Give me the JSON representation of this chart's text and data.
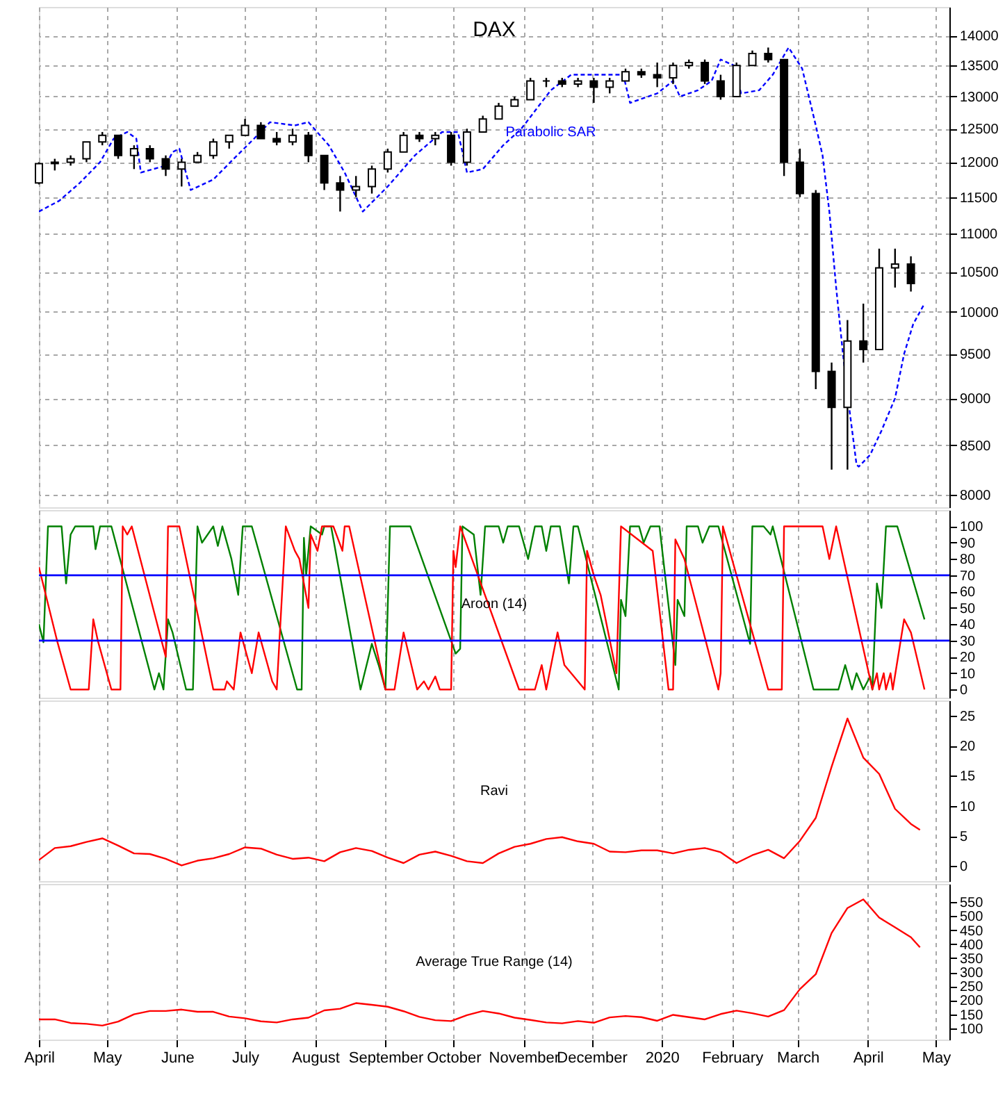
{
  "chart_data": [
    {
      "type": "candlestick",
      "title": "DAX",
      "log": true,
      "grid": true,
      "tick_labels": "y",
      "xlim": [
        "2019-04-01",
        "2020-05-07"
      ],
      "xticks": [
        {
          "value": "2019-04-01",
          "label": null
        },
        {
          "value": "2019-05-01",
          "label": null
        },
        {
          "value": "2019-06-01",
          "label": null
        },
        {
          "value": "2019-07-01",
          "label": null
        },
        {
          "value": "2019-08-01",
          "label": null
        },
        {
          "value": "2019-09-01",
          "label": null
        },
        {
          "value": "2019-10-01",
          "label": null
        },
        {
          "value": "2019-11-01",
          "label": null
        },
        {
          "value": "2019-12-01",
          "label": null
        },
        {
          "value": "2020-01-01",
          "label": null
        },
        {
          "value": "2020-02-01",
          "label": null
        },
        {
          "value": "2020-03-01",
          "label": null
        },
        {
          "value": "2020-04-01",
          "label": null
        },
        {
          "value": "2020-05-01",
          "label": null
        }
      ],
      "ylim": [
        7880,
        14500
      ],
      "yticks": [
        8000,
        8500,
        9000,
        9500,
        10000,
        10500,
        11000,
        11500,
        12000,
        12500,
        13000,
        13500,
        14000
      ],
      "x": [
        "2019-04-01",
        "2019-04-08",
        "2019-04-15",
        "2019-04-22",
        "2019-04-29",
        "2019-05-06",
        "2019-05-13",
        "2019-05-20",
        "2019-05-27",
        "2019-06-03",
        "2019-06-10",
        "2019-06-17",
        "2019-06-24",
        "2019-07-01",
        "2019-07-08",
        "2019-07-15",
        "2019-07-22",
        "2019-07-29",
        "2019-08-05",
        "2019-08-12",
        "2019-08-19",
        "2019-08-26",
        "2019-09-02",
        "2019-09-09",
        "2019-09-16",
        "2019-09-23",
        "2019-09-30",
        "2019-10-07",
        "2019-10-14",
        "2019-10-21",
        "2019-10-28",
        "2019-11-04",
        "2019-11-11",
        "2019-11-18",
        "2019-11-25",
        "2019-12-02",
        "2019-12-09",
        "2019-12-16",
        "2019-12-23",
        "2019-12-30",
        "2020-01-06",
        "2020-01-13",
        "2020-01-20",
        "2020-01-27",
        "2020-02-03",
        "2020-02-10",
        "2020-02-17",
        "2020-02-24",
        "2020-03-02",
        "2020-03-09",
        "2020-03-16",
        "2020-03-23",
        "2020-03-30",
        "2020-04-06",
        "2020-04-13",
        "2020-04-20"
      ],
      "ohlc": [
        [
          11700,
          12000,
          11680,
          11980
        ],
        [
          11980,
          12050,
          11880,
          12000
        ],
        [
          12000,
          12100,
          11950,
          12050
        ],
        [
          12050,
          12300,
          12000,
          12300
        ],
        [
          12300,
          12450,
          12250,
          12400
        ],
        [
          12400,
          12400,
          12050,
          12100
        ],
        [
          12100,
          12250,
          11900,
          12200
        ],
        [
          12200,
          12250,
          12000,
          12050
        ],
        [
          12050,
          12100,
          11800,
          11900
        ],
        [
          11900,
          12050,
          11650,
          12000
        ],
        [
          12000,
          12150,
          12000,
          12100
        ],
        [
          12100,
          12350,
          12050,
          12300
        ],
        [
          12300,
          12400,
          12200,
          12400
        ],
        [
          12400,
          12650,
          12400,
          12550
        ],
        [
          12550,
          12600,
          12350,
          12350
        ],
        [
          12350,
          12450,
          12250,
          12300
        ],
        [
          12300,
          12500,
          12250,
          12400
        ],
        [
          12400,
          12450,
          12000,
          12100
        ],
        [
          12100,
          12100,
          11600,
          11700
        ],
        [
          11700,
          11800,
          11300,
          11600
        ],
        [
          11600,
          11800,
          11500,
          11650
        ],
        [
          11650,
          11950,
          11550,
          11900
        ],
        [
          11900,
          12200,
          11850,
          12150
        ],
        [
          12150,
          12450,
          12150,
          12400
        ],
        [
          12400,
          12450,
          12300,
          12350
        ],
        [
          12350,
          12450,
          12250,
          12400
        ],
        [
          12400,
          12450,
          11950,
          12000
        ],
        [
          12000,
          12500,
          11950,
          12450
        ],
        [
          12450,
          12700,
          12450,
          12650
        ],
        [
          12650,
          12900,
          12650,
          12850
        ],
        [
          12850,
          13000,
          12850,
          12950
        ],
        [
          12950,
          13300,
          12950,
          13250
        ],
        [
          13250,
          13300,
          13150,
          13250
        ],
        [
          13250,
          13300,
          13150,
          13200
        ],
        [
          13200,
          13300,
          13150,
          13250
        ],
        [
          13250,
          13300,
          12900,
          13150
        ],
        [
          13150,
          13300,
          13050,
          13250
        ],
        [
          13250,
          13450,
          13250,
          13400
        ],
        [
          13400,
          13450,
          13300,
          13350
        ],
        [
          13350,
          13550,
          13150,
          13300
        ],
        [
          13300,
          13550,
          13200,
          13500
        ],
        [
          13500,
          13600,
          13450,
          13550
        ],
        [
          13550,
          13600,
          13200,
          13250
        ],
        [
          13250,
          13350,
          12950,
          13000
        ],
        [
          13000,
          13550,
          13000,
          13500
        ],
        [
          13500,
          13750,
          13500,
          13700
        ],
        [
          13700,
          13800,
          13550,
          13600
        ],
        [
          13600,
          13600,
          11800,
          12000
        ],
        [
          12000,
          12200,
          11500,
          11550
        ],
        [
          11550,
          11600,
          9100,
          9300
        ],
        [
          9300,
          9400,
          8250,
          8900
        ],
        [
          8900,
          9900,
          8250,
          9650
        ],
        [
          9650,
          10100,
          9400,
          9550
        ],
        [
          9550,
          10800,
          9550,
          10550
        ],
        [
          10550,
          10800,
          10300,
          10600
        ],
        [
          10600,
          10700,
          10250,
          10350
        ]
      ],
      "series": [
        {
          "name": "Parabolic SAR",
          "type": "line",
          "color": "#0000ff",
          "line_style": "dashed",
          "x": [
            "2019-04-01",
            "2019-04-10",
            "2019-04-19",
            "2019-04-28",
            "2019-05-04",
            "2019-05-10",
            "2019-05-14",
            "2019-05-16",
            "2019-05-27",
            "2019-05-30",
            "2019-06-02",
            "2019-06-07",
            "2019-06-17",
            "2019-06-26",
            "2019-07-05",
            "2019-07-12",
            "2019-07-23",
            "2019-07-29",
            "2019-08-07",
            "2019-08-14",
            "2019-08-22",
            "2019-09-02",
            "2019-09-14",
            "2019-09-26",
            "2019-10-03",
            "2019-10-07",
            "2019-10-14",
            "2019-10-23",
            "2019-10-31",
            "2019-11-13",
            "2019-11-22",
            "2019-12-15",
            "2019-12-18",
            "2019-12-30",
            "2020-01-06",
            "2020-01-09",
            "2020-01-17",
            "2020-01-23",
            "2020-01-27",
            "2020-02-02",
            "2020-02-05",
            "2020-02-13",
            "2020-02-19",
            "2020-02-26",
            "2020-03-03",
            "2020-03-09",
            "2020-03-12",
            "2020-03-15",
            "2020-03-18",
            "2020-03-21",
            "2020-03-24",
            "2020-03-27",
            "2020-03-28",
            "2020-04-02",
            "2020-04-07",
            "2020-04-13",
            "2020-04-17",
            "2020-04-21",
            "2020-04-26"
          ],
          "values": [
            11300,
            11450,
            11700,
            12000,
            12350,
            12450,
            12350,
            11850,
            11950,
            12150,
            12200,
            11600,
            11750,
            12050,
            12350,
            12600,
            12550,
            12600,
            12250,
            11850,
            11300,
            11650,
            12100,
            12450,
            12450,
            11850,
            11900,
            12250,
            12500,
            13100,
            13350,
            13350,
            12900,
            13050,
            13250,
            13000,
            13100,
            13250,
            13600,
            13500,
            13050,
            13100,
            13350,
            13800,
            13450,
            12550,
            12100,
            11300,
            10300,
            9500,
            8850,
            8300,
            8280,
            8400,
            8650,
            9000,
            9500,
            9850,
            10100
          ]
        }
      ]
    },
    {
      "type": "line",
      "grid": "x",
      "tick_labels": "y",
      "annotations": [
        "Aroon (14)"
      ],
      "xlim": [
        "2019-04-01",
        "2020-05-07"
      ],
      "xticks": [
        {
          "value": "2019-04-01",
          "label": null
        },
        {
          "value": "2019-05-01",
          "label": null
        },
        {
          "value": "2019-06-01",
          "label": null
        },
        {
          "value": "2019-07-01",
          "label": null
        },
        {
          "value": "2019-08-01",
          "label": null
        },
        {
          "value": "2019-09-01",
          "label": null
        },
        {
          "value": "2019-10-01",
          "label": null
        },
        {
          "value": "2019-11-01",
          "label": null
        },
        {
          "value": "2019-12-01",
          "label": null
        },
        {
          "value": "2020-01-01",
          "label": null
        },
        {
          "value": "2020-02-01",
          "label": null
        },
        {
          "value": "2020-03-01",
          "label": null
        },
        {
          "value": "2020-04-01",
          "label": null
        },
        {
          "value": "2020-05-01",
          "label": null
        }
      ],
      "ylim": [
        -5,
        110
      ],
      "yticks": [
        0,
        10,
        20,
        30,
        40,
        50,
        60,
        70,
        80,
        90,
        100
      ],
      "ref_lines": [
        {
          "axis": "y",
          "value": 70,
          "color": "#0000ff"
        },
        {
          "axis": "y",
          "value": 30,
          "color": "#0000ff"
        }
      ],
      "series": [
        {
          "color": "#008000",
          "x": [
            "2019-04-01",
            "2019-04-03",
            "2019-04-05",
            "2019-04-11",
            "2019-04-13",
            "2019-04-15",
            "2019-04-17",
            "2019-04-25",
            "2019-04-26",
            "2019-04-28",
            "2019-05-03",
            "2019-05-22",
            "2019-05-24",
            "2019-05-26",
            "2019-05-28",
            "2019-05-30",
            "2019-06-05",
            "2019-06-08",
            "2019-06-10",
            "2019-06-12",
            "2019-06-17",
            "2019-06-19",
            "2019-06-21",
            "2019-06-25",
            "2019-06-28",
            "2019-06-30",
            "2019-07-04",
            "2019-07-24",
            "2019-07-26",
            "2019-07-27",
            "2019-07-28",
            "2019-07-30",
            "2019-08-04",
            "2019-08-05",
            "2019-08-08",
            "2019-08-21",
            "2019-08-26",
            "2019-08-29",
            "2019-09-01",
            "2019-09-03",
            "2019-09-12",
            "2019-10-02",
            "2019-10-04",
            "2019-10-05",
            "2019-10-10",
            "2019-10-13",
            "2019-10-15",
            "2019-10-21",
            "2019-10-23",
            "2019-10-25",
            "2019-10-30",
            "2019-11-03",
            "2019-11-06",
            "2019-11-09",
            "2019-11-11",
            "2019-11-13",
            "2019-11-17",
            "2019-11-21",
            "2019-11-23",
            "2019-11-25",
            "2019-12-13",
            "2019-12-14",
            "2019-12-16",
            "2019-12-18",
            "2019-12-22",
            "2019-12-24",
            "2019-12-27",
            "2019-12-31",
            "2020-01-07",
            "2020-01-08",
            "2020-01-11",
            "2020-01-12",
            "2020-01-17",
            "2020-01-19",
            "2020-01-22",
            "2020-01-26",
            "2020-02-09",
            "2020-02-10",
            "2020-02-15",
            "2020-02-18",
            "2020-02-19",
            "2020-03-08",
            "2020-03-19",
            "2020-03-22",
            "2020-03-25",
            "2020-03-27",
            "2020-03-30",
            "2020-04-02",
            "2020-04-03",
            "2020-04-05",
            "2020-04-07",
            "2020-04-09",
            "2020-04-14",
            "2020-04-26"
          ],
          "values": [
            40,
            29,
            100,
            100,
            65,
            95,
            100,
            100,
            86,
            100,
            100,
            0,
            10,
            0,
            43,
            35,
            0,
            0,
            100,
            90,
            100,
            88,
            100,
            80,
            58,
            100,
            100,
            0,
            0,
            93,
            70,
            100,
            95,
            100,
            100,
            0,
            28,
            15,
            0,
            100,
            100,
            22,
            25,
            100,
            95,
            58,
            100,
            100,
            90,
            100,
            100,
            80,
            100,
            100,
            85,
            100,
            100,
            65,
            100,
            100,
            0,
            55,
            45,
            100,
            100,
            90,
            100,
            100,
            15,
            55,
            45,
            100,
            100,
            90,
            100,
            100,
            28,
            100,
            100,
            95,
            100,
            0,
            0,
            15,
            0,
            10,
            0,
            8,
            0,
            65,
            50,
            100,
            100,
            43
          ]
        },
        {
          "color": "#ff0000",
          "x": [
            "2019-04-01",
            "2019-04-09",
            "2019-04-15",
            "2019-04-23",
            "2019-04-25",
            "2019-04-27",
            "2019-05-03",
            "2019-05-07",
            "2019-05-08",
            "2019-05-10",
            "2019-05-12",
            "2019-05-27",
            "2019-05-28",
            "2019-06-02",
            "2019-06-17",
            "2019-06-22",
            "2019-06-23",
            "2019-06-26",
            "2019-06-29",
            "2019-07-02",
            "2019-07-04",
            "2019-07-07",
            "2019-07-13",
            "2019-07-15",
            "2019-07-19",
            "2019-07-23",
            "2019-07-25",
            "2019-07-29",
            "2019-07-30",
            "2019-08-02",
            "2019-08-04",
            "2019-08-09",
            "2019-08-13",
            "2019-08-14",
            "2019-08-16",
            "2019-09-01",
            "2019-09-05",
            "2019-09-09",
            "2019-09-15",
            "2019-09-18",
            "2019-09-20",
            "2019-09-23",
            "2019-09-25",
            "2019-09-30",
            "2019-10-01",
            "2019-10-02",
            "2019-10-04",
            "2019-10-30",
            "2019-11-06",
            "2019-11-09",
            "2019-11-11",
            "2019-11-16",
            "2019-11-19",
            "2019-11-28",
            "2019-11-29",
            "2019-12-02",
            "2019-12-05",
            "2019-12-12",
            "2019-12-14",
            "2019-12-28",
            "2020-01-04",
            "2020-01-06",
            "2020-01-07",
            "2020-01-11",
            "2020-01-26",
            "2020-01-27",
            "2020-01-28",
            "2020-02-07",
            "2020-02-17",
            "2020-02-23",
            "2020-02-24",
            "2020-03-12",
            "2020-03-15",
            "2020-03-18",
            "2020-04-03",
            "2020-04-05",
            "2020-04-06",
            "2020-04-08",
            "2020-04-09",
            "2020-04-11",
            "2020-04-12",
            "2020-04-17",
            "2020-04-20",
            "2020-04-26"
          ],
          "values": [
            75,
            30,
            0,
            0,
            43,
            30,
            0,
            0,
            100,
            95,
            100,
            20,
            100,
            100,
            0,
            0,
            5,
            0,
            35,
            20,
            10,
            35,
            5,
            0,
            100,
            85,
            80,
            50,
            95,
            85,
            100,
            100,
            85,
            100,
            100,
            0,
            0,
            35,
            0,
            5,
            0,
            8,
            0,
            0,
            85,
            75,
            100,
            0,
            0,
            15,
            0,
            35,
            15,
            0,
            85,
            70,
            58,
            10,
            100,
            85,
            0,
            0,
            92,
            80,
            0,
            10,
            100,
            50,
            0,
            0,
            100,
            100,
            80,
            100,
            0,
            10,
            0,
            10,
            0,
            10,
            0,
            43,
            35,
            0
          ]
        }
      ]
    },
    {
      "type": "line",
      "grid": "x",
      "tick_labels": "y",
      "annotations": [
        "Ravi"
      ],
      "xlim": [
        "2019-04-01",
        "2020-05-07"
      ],
      "xticks": [
        {
          "value": "2019-04-01",
          "label": null
        },
        {
          "value": "2019-05-01",
          "label": null
        },
        {
          "value": "2019-06-01",
          "label": null
        },
        {
          "value": "2019-07-01",
          "label": null
        },
        {
          "value": "2019-08-01",
          "label": null
        },
        {
          "value": "2019-09-01",
          "label": null
        },
        {
          "value": "2019-10-01",
          "label": null
        },
        {
          "value": "2019-11-01",
          "label": null
        },
        {
          "value": "2019-12-01",
          "label": null
        },
        {
          "value": "2020-01-01",
          "label": null
        },
        {
          "value": "2020-02-01",
          "label": null
        },
        {
          "value": "2020-03-01",
          "label": null
        },
        {
          "value": "2020-04-01",
          "label": null
        },
        {
          "value": "2020-05-01",
          "label": null
        }
      ],
      "ylim": [
        -2.5,
        27.5
      ],
      "yticks": [
        0,
        5,
        10,
        15,
        20,
        25
      ],
      "x": [
        "2019-04-01",
        "2019-04-08",
        "2019-04-15",
        "2019-04-22",
        "2019-04-29",
        "2019-05-06",
        "2019-05-13",
        "2019-05-20",
        "2019-05-27",
        "2019-06-03",
        "2019-06-10",
        "2019-06-17",
        "2019-06-24",
        "2019-07-01",
        "2019-07-08",
        "2019-07-15",
        "2019-07-22",
        "2019-07-29",
        "2019-08-05",
        "2019-08-12",
        "2019-08-19",
        "2019-08-26",
        "2019-09-02",
        "2019-09-09",
        "2019-09-16",
        "2019-09-23",
        "2019-09-30",
        "2019-10-07",
        "2019-10-14",
        "2019-10-21",
        "2019-10-28",
        "2019-11-04",
        "2019-11-11",
        "2019-11-18",
        "2019-11-25",
        "2019-12-02",
        "2019-12-09",
        "2019-12-16",
        "2019-12-23",
        "2019-12-30",
        "2020-01-06",
        "2020-01-13",
        "2020-01-20",
        "2020-01-27",
        "2020-02-03",
        "2020-02-10",
        "2020-02-17",
        "2020-02-24",
        "2020-03-02",
        "2020-03-09",
        "2020-03-16",
        "2020-03-23",
        "2020-03-30",
        "2020-04-06",
        "2020-04-13",
        "2020-04-20",
        "2020-04-24"
      ],
      "series": [
        {
          "color": "#ff0000",
          "values": [
            1.0,
            3.0,
            3.3,
            4.0,
            4.6,
            3.4,
            2.1,
            2.0,
            1.2,
            0.1,
            0.9,
            1.3,
            2.0,
            3.1,
            2.9,
            1.9,
            1.2,
            1.4,
            0.8,
            2.3,
            3.0,
            2.5,
            1.4,
            0.5,
            1.9,
            2.4,
            1.7,
            0.8,
            0.5,
            2.1,
            3.2,
            3.7,
            4.5,
            4.8,
            4.1,
            3.7,
            2.4,
            2.3,
            2.6,
            2.6,
            2.1,
            2.7,
            3.0,
            2.3,
            0.5,
            1.8,
            2.7,
            1.3,
            4.2,
            8.0,
            16.5,
            24.5,
            18.0,
            15.3,
            9.5,
            7.0,
            6.0
          ]
        }
      ]
    },
    {
      "type": "line",
      "grid": "x",
      "annotations": [
        "Average True Range (14)"
      ],
      "xlim": [
        "2019-04-01",
        "2020-05-07"
      ],
      "xticks": [
        {
          "value": "2019-04-01",
          "label": "April"
        },
        {
          "value": "2019-05-01",
          "label": "May"
        },
        {
          "value": "2019-06-01",
          "label": "June"
        },
        {
          "value": "2019-07-01",
          "label": "July"
        },
        {
          "value": "2019-08-01",
          "label": "August"
        },
        {
          "value": "2019-09-01",
          "label": "September"
        },
        {
          "value": "2019-10-01",
          "label": "October"
        },
        {
          "value": "2019-11-01",
          "label": "November"
        },
        {
          "value": "2019-12-01",
          "label": "December"
        },
        {
          "value": "2020-01-01",
          "label": "2020"
        },
        {
          "value": "2020-02-01",
          "label": "February"
        },
        {
          "value": "2020-03-01",
          "label": "March"
        },
        {
          "value": "2020-04-01",
          "label": "April"
        },
        {
          "value": "2020-05-01",
          "label": "May"
        }
      ],
      "ylim": [
        60,
        615
      ],
      "yticks": [
        100,
        150,
        200,
        250,
        300,
        350,
        400,
        450,
        500,
        550
      ],
      "x": [
        "2019-04-01",
        "2019-04-08",
        "2019-04-15",
        "2019-04-22",
        "2019-04-29",
        "2019-05-06",
        "2019-05-13",
        "2019-05-20",
        "2019-05-27",
        "2019-06-03",
        "2019-06-10",
        "2019-06-17",
        "2019-06-24",
        "2019-07-01",
        "2019-07-08",
        "2019-07-15",
        "2019-07-22",
        "2019-07-29",
        "2019-08-05",
        "2019-08-12",
        "2019-08-19",
        "2019-08-26",
        "2019-09-02",
        "2019-09-09",
        "2019-09-16",
        "2019-09-23",
        "2019-09-30",
        "2019-10-07",
        "2019-10-14",
        "2019-10-21",
        "2019-10-28",
        "2019-11-04",
        "2019-11-11",
        "2019-11-18",
        "2019-11-25",
        "2019-12-02",
        "2019-12-09",
        "2019-12-16",
        "2019-12-23",
        "2019-12-30",
        "2020-01-06",
        "2020-01-13",
        "2020-01-20",
        "2020-01-27",
        "2020-02-03",
        "2020-02-10",
        "2020-02-17",
        "2020-02-24",
        "2020-03-02",
        "2020-03-09",
        "2020-03-16",
        "2020-03-23",
        "2020-03-30",
        "2020-04-06",
        "2020-04-13",
        "2020-04-20",
        "2020-04-24"
      ],
      "series": [
        {
          "color": "#ff0000",
          "values": [
            132,
            132,
            119,
            116,
            110,
            124,
            150,
            162,
            162,
            167,
            159,
            159,
            142,
            136,
            125,
            121,
            132,
            138,
            164,
            170,
            190,
            184,
            177,
            161,
            141,
            129,
            126,
            147,
            162,
            153,
            138,
            130,
            121,
            118,
            126,
            120,
            139,
            144,
            140,
            127,
            148,
            140,
            132,
            151,
            163,
            154,
            142,
            165,
            240,
            293,
            440,
            529,
            560,
            495,
            460,
            425,
            389
          ]
        }
      ]
    }
  ]
}
